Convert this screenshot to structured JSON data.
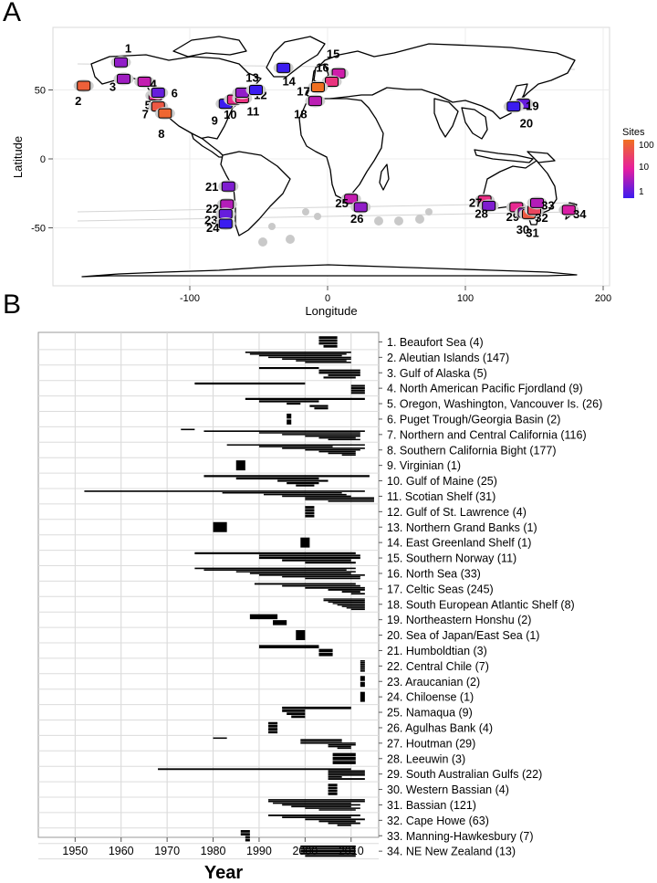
{
  "panels": {
    "a": "A",
    "b": "B"
  },
  "map": {
    "xlabel": "Longitude",
    "ylabel": "Latitude",
    "xticks": [
      "-100",
      "0",
      "100",
      "200"
    ],
    "yticks": [
      "50",
      "0",
      "-50"
    ],
    "legend": {
      "title": "Sites",
      "labels": [
        "100",
        "10",
        "1"
      ]
    },
    "region_numbers": [
      "1",
      "2",
      "3",
      "4",
      "5",
      "6",
      "7",
      "8",
      "9",
      "10",
      "11",
      "12",
      "13",
      "14",
      "15",
      "16",
      "17",
      "18",
      "19",
      "20",
      "21",
      "22",
      "23",
      "24",
      "25",
      "26",
      "27",
      "28",
      "29",
      "30",
      "31",
      "32",
      "33",
      "34"
    ]
  },
  "chart_data": [
    {
      "type": "map",
      "xlabel": "Longitude",
      "ylabel": "Latitude",
      "xlim": [
        -190,
        210
      ],
      "ylim": [
        -95,
        95
      ],
      "xticks": [
        -100,
        0,
        100,
        200
      ],
      "yticks": [
        -50,
        0,
        50
      ],
      "legend": {
        "title": "Sites",
        "scale": "log",
        "ticks": [
          1,
          10,
          100
        ],
        "colors": [
          "#3b1cf0",
          "#e61ea0",
          "#f07020"
        ]
      },
      "regions": [
        {
          "id": 1,
          "lon": -150,
          "lat": 70,
          "sites": 4
        },
        {
          "id": 2,
          "lon": -177,
          "lat": 53,
          "sites": 147
        },
        {
          "id": 3,
          "lon": -148,
          "lat": 58,
          "sites": 5
        },
        {
          "id": 4,
          "lon": -133,
          "lat": 56,
          "sites": 9
        },
        {
          "id": 5,
          "lon": -125,
          "lat": 46,
          "sites": 26
        },
        {
          "id": 6,
          "lon": -123,
          "lat": 48,
          "sites": 2
        },
        {
          "id": 7,
          "lon": -123,
          "lat": 38,
          "sites": 116
        },
        {
          "id": 8,
          "lon": -118,
          "lat": 33,
          "sites": 177
        },
        {
          "id": 9,
          "lon": -74,
          "lat": 40,
          "sites": 1
        },
        {
          "id": 10,
          "lon": -68,
          "lat": 43,
          "sites": 25
        },
        {
          "id": 11,
          "lon": -62,
          "lat": 44,
          "sites": 31
        },
        {
          "id": 12,
          "lon": -62,
          "lat": 48,
          "sites": 4
        },
        {
          "id": 13,
          "lon": -52,
          "lat": 50,
          "sites": 1
        },
        {
          "id": 14,
          "lon": -32,
          "lat": 66,
          "sites": 1
        },
        {
          "id": 15,
          "lon": 8,
          "lat": 62,
          "sites": 11
        },
        {
          "id": 16,
          "lon": 3,
          "lat": 56,
          "sites": 33
        },
        {
          "id": 17,
          "lon": -7,
          "lat": 52,
          "sites": 245
        },
        {
          "id": 18,
          "lon": -9,
          "lat": 42,
          "sites": 8
        },
        {
          "id": 19,
          "lon": 142,
          "lat": 40,
          "sites": 2
        },
        {
          "id": 20,
          "lon": 135,
          "lat": 38,
          "sites": 1
        },
        {
          "id": 21,
          "lon": -72,
          "lat": -20,
          "sites": 3
        },
        {
          "id": 22,
          "lon": -73,
          "lat": -33,
          "sites": 7
        },
        {
          "id": 23,
          "lon": -74,
          "lat": -40,
          "sites": 2
        },
        {
          "id": 24,
          "lon": -74,
          "lat": -47,
          "sites": 1
        },
        {
          "id": 25,
          "lon": 17,
          "lat": -29,
          "sites": 9
        },
        {
          "id": 26,
          "lon": 24,
          "lat": -35,
          "sites": 4
        },
        {
          "id": 27,
          "lon": 114,
          "lat": -30,
          "sites": 29
        },
        {
          "id": 28,
          "lon": 117,
          "lat": -34,
          "sites": 3
        },
        {
          "id": 29,
          "lon": 137,
          "lat": -35,
          "sites": 22
        },
        {
          "id": 30,
          "lon": 143,
          "lat": -39,
          "sites": 4
        },
        {
          "id": 31,
          "lon": 146,
          "lat": -40,
          "sites": 121
        },
        {
          "id": 32,
          "lon": 150,
          "lat": -37,
          "sites": 63
        },
        {
          "id": 33,
          "lon": 152,
          "lat": -32,
          "sites": 7
        },
        {
          "id": 34,
          "lon": 175,
          "lat": -37,
          "sites": 13
        }
      ]
    },
    {
      "type": "bar",
      "subtype": "timeline",
      "xlabel": "Year",
      "xlim": [
        1942,
        2016
      ],
      "xticks": [
        1950,
        1960,
        1970,
        1980,
        1990,
        2000,
        2010
      ],
      "grid": true,
      "categories": [
        "1. Beaufort Sea (4)",
        "2. Aleutian Islands (147)",
        "3. Gulf of Alaska (5)",
        "4. North American Pacific Fjordland (9)",
        "5. Oregon, Washington, Vancouver Is. (26)",
        "6. Puget Trough/Georgia Basin (2)",
        "7. Northern and Central California (116)",
        "8. Southern California Bight (177)",
        "9. Virginian (1)",
        "10. Gulf of Maine (25)",
        "11. Scotian Shelf (31)",
        "12. Gulf of St. Lawrence (4)",
        "13. Northern Grand Banks (1)",
        "14. East Greenland Shelf (1)",
        "15. Southern Norway (11)",
        "16. North Sea (33)",
        "17. Celtic Seas (245)",
        "18. South European Atlantic Shelf (8)",
        "19. Northeastern Honshu (2)",
        "20. Sea of Japan/East Sea (1)",
        "21. Humboldtian (3)",
        "22. Central Chile (7)",
        "23. Araucanian (2)",
        "24. Chiloense (1)",
        "25. Namaqua (9)",
        "26. Agulhas Bank (4)",
        "27. Houtman (29)",
        "28. Leeuwin (3)",
        "29. South Australian Gulfs (22)",
        "30. Western Bassian (4)",
        "31. Bassian (121)",
        "32. Cape Howe (63)",
        "33. Manning-Hawkesbury (7)",
        "34. NE New Zealand (13)"
      ],
      "series": [
        {
          "values": [
            [
              2003,
              2007
            ],
            [
              2003,
              2007
            ],
            [
              2003,
              2007
            ],
            [
              2004,
              2007
            ]
          ]
        },
        {
          "values": [
            [
              1987,
              2010
            ],
            [
              1988,
              2009
            ],
            [
              1990,
              2008
            ],
            [
              1992,
              2010
            ],
            [
              1995,
              2010
            ],
            [
              1998,
              2009
            ],
            [
              2000,
              2010
            ]
          ]
        },
        {
          "values": [
            [
              1990,
              2003
            ],
            [
              2003,
              2012
            ],
            [
              2003,
              2012
            ],
            [
              2005,
              2012
            ],
            [
              2004,
              2011
            ]
          ]
        },
        {
          "values": [
            [
              1976,
              2000
            ],
            [
              2010,
              2013
            ],
            [
              2010,
              2013
            ],
            [
              2010,
              2013
            ],
            [
              2010,
              2013
            ]
          ]
        },
        {
          "values": [
            [
              1987,
              2013
            ],
            [
              1990,
              2003
            ],
            [
              1996,
              1999
            ],
            [
              2001,
              2005
            ],
            [
              2002,
              2005
            ]
          ]
        },
        {
          "values": [
            [
              1996,
              1997
            ],
            [
              1996,
              1997
            ]
          ]
        },
        {
          "values": [
            [
              1973,
              1976
            ],
            [
              1978,
              2013
            ],
            [
              1990,
              2012
            ],
            [
              1995,
              2012
            ],
            [
              2000,
              2012
            ],
            [
              2003,
              2011
            ],
            [
              2005,
              2012
            ]
          ]
        },
        {
          "values": [
            [
              1983,
              2013
            ],
            [
              1990,
              2006
            ],
            [
              1995,
              2013
            ],
            [
              2000,
              2012
            ],
            [
              2003,
              2011
            ],
            [
              2005,
              2011
            ],
            [
              2008,
              2011
            ]
          ]
        },
        {
          "values": [
            [
              1985,
              1987
            ]
          ]
        },
        {
          "values": [
            [
              1978,
              2014
            ],
            [
              1985,
              2003
            ],
            [
              1994,
              2005
            ],
            [
              1996,
              2003
            ],
            [
              1998,
              2002
            ]
          ]
        },
        {
          "values": [
            [
              1952,
              2013
            ],
            [
              1982,
              2008
            ],
            [
              1991,
              2009
            ],
            [
              1995,
              2010
            ],
            [
              2000,
              2015
            ],
            [
              2000,
              2015
            ],
            [
              2005,
              2015
            ]
          ]
        },
        {
          "values": [
            [
              2000,
              2002
            ],
            [
              2000,
              2002
            ],
            [
              2000,
              2002
            ],
            [
              2000,
              2002
            ]
          ]
        },
        {
          "values": [
            [
              1980,
              1983
            ]
          ]
        },
        {
          "values": [
            [
              1999,
              2001
            ]
          ]
        },
        {
          "values": [
            [
              1976,
              2011
            ],
            [
              1990,
              2012
            ],
            [
              1990,
              2012
            ],
            [
              1995,
              2010
            ],
            [
              2000,
              2011
            ]
          ]
        },
        {
          "values": [
            [
              1976,
              2011
            ],
            [
              1978,
              2009
            ],
            [
              1985,
              2011
            ],
            [
              1988,
              2010
            ],
            [
              1990,
              2013
            ],
            [
              1995,
              2012
            ],
            [
              2000,
              2012
            ]
          ]
        },
        {
          "values": [
            [
              1989,
              2011
            ],
            [
              1995,
              2012
            ],
            [
              2000,
              2013
            ],
            [
              2005,
              2013
            ],
            [
              2008,
              2012
            ],
            [
              2010,
              2013
            ]
          ]
        },
        {
          "values": [
            [
              2004,
              2013
            ],
            [
              2004,
              2013
            ],
            [
              2005,
              2013
            ],
            [
              2006,
              2013
            ],
            [
              2007,
              2013
            ],
            [
              2008,
              2013
            ],
            [
              2009,
              2013
            ],
            [
              2010,
              2013
            ]
          ]
        },
        {
          "values": [
            [
              1988,
              1994
            ],
            [
              1993,
              1996
            ]
          ]
        },
        {
          "values": [
            [
              1998,
              2000
            ]
          ]
        },
        {
          "values": [
            [
              1990,
              2003
            ],
            [
              2003,
              2006
            ],
            [
              2003,
              2006
            ]
          ]
        },
        {
          "values": [
            [
              2012,
              2013
            ],
            [
              2012,
              2013
            ],
            [
              2012,
              2013
            ],
            [
              2012,
              2013
            ],
            [
              2012,
              2013
            ],
            [
              2012,
              2013
            ],
            [
              2012,
              2013
            ]
          ]
        },
        {
          "values": [
            [
              2012,
              2013
            ],
            [
              2012,
              2013
            ]
          ]
        },
        {
          "values": [
            [
              2012,
              2013
            ]
          ]
        },
        {
          "values": [
            [
              1995,
              2010
            ],
            [
              1995,
              2000
            ],
            [
              1996,
              2000
            ],
            [
              1997,
              2000
            ]
          ]
        },
        {
          "values": [
            [
              1992,
              1994
            ],
            [
              1992,
              1994
            ],
            [
              1992,
              1994
            ],
            [
              1992,
              1994
            ]
          ]
        },
        {
          "values": [
            [
              1980,
              1983
            ],
            [
              1999,
              2008
            ],
            [
              1999,
              2008
            ],
            [
              1999,
              2011
            ],
            [
              2005,
              2011
            ],
            [
              2005,
              2010
            ],
            [
              2007,
              2010
            ]
          ]
        },
        {
          "values": [
            [
              2006,
              2011
            ],
            [
              2006,
              2011
            ],
            [
              2006,
              2011
            ]
          ]
        },
        {
          "values": [
            [
              1968,
              2010
            ],
            [
              2005,
              2013
            ],
            [
              2005,
              2013
            ],
            [
              2005,
              2013
            ],
            [
              2005,
              2008
            ],
            [
              2005,
              2013
            ]
          ]
        },
        {
          "values": [
            [
              2005,
              2007
            ],
            [
              2005,
              2007
            ],
            [
              2005,
              2007
            ],
            [
              2005,
              2007
            ]
          ]
        },
        {
          "values": [
            [
              1992,
              2013
            ],
            [
              1992,
              2013
            ],
            [
              1993,
              2010
            ],
            [
              1995,
              2012
            ],
            [
              1997,
              2010
            ],
            [
              2000,
              2012
            ],
            [
              2003,
              2011
            ]
          ]
        },
        {
          "values": [
            [
              1992,
              2012
            ],
            [
              1995,
              2010
            ],
            [
              2000,
              2013
            ],
            [
              2003,
              2011
            ],
            [
              2005,
              2012
            ],
            [
              2007,
              2010
            ]
          ]
        },
        {
          "values": [
            [
              1986,
              1988
            ],
            [
              1986,
              1988
            ],
            [
              1987,
              1988
            ],
            [
              1987,
              1988
            ]
          ]
        },
        {
          "values": [
            [
              1999,
              2011
            ],
            [
              1999,
              2011
            ],
            [
              1999,
              2011
            ],
            [
              1999,
              2011
            ],
            [
              2000,
              2011
            ]
          ]
        }
      ]
    }
  ]
}
